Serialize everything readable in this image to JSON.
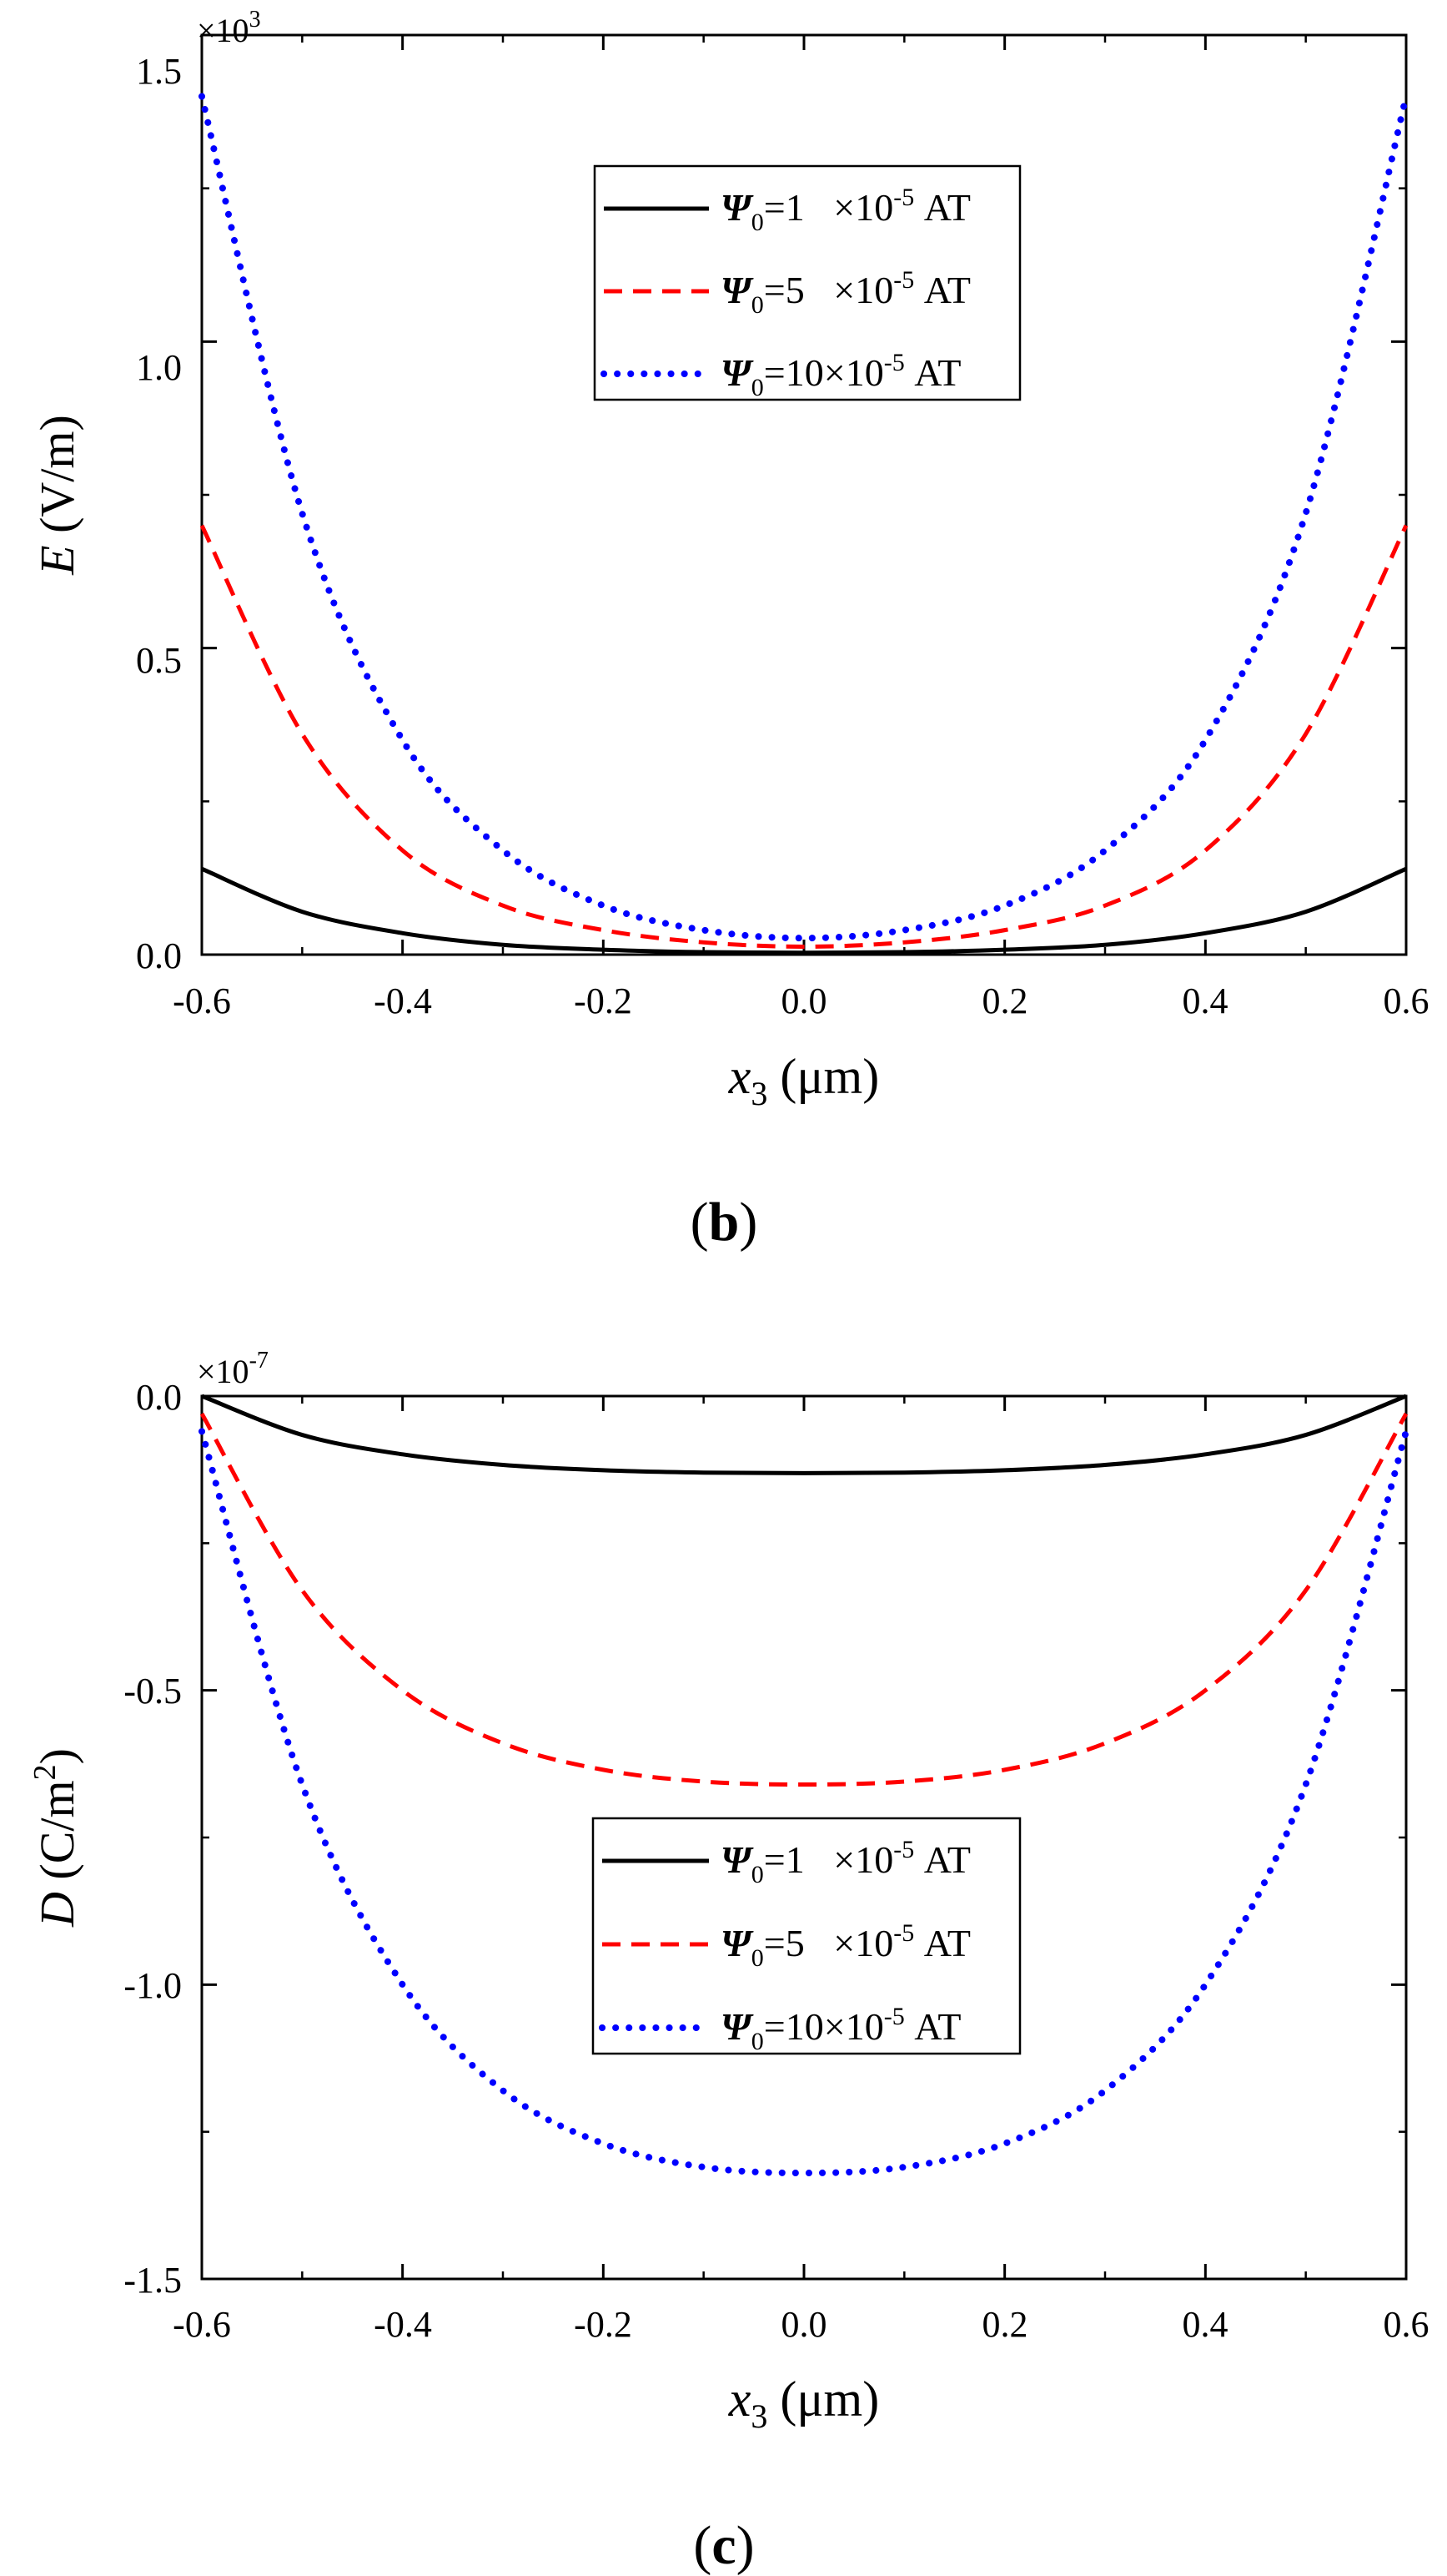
{
  "chart_data": [
    {
      "type": "line",
      "panel_label": "b",
      "ylabel_var": "E",
      "ylabel_unit": " (V/m)",
      "xlabel_var": "x",
      "xlabel_sub": "3",
      "xlabel_unit": " (μm)",
      "xlim": [
        -0.6,
        0.6
      ],
      "ylim": [
        0,
        1.5
      ],
      "xticks": [
        "-0.6",
        "-0.4",
        "-0.2",
        "0.0",
        "0.2",
        "0.4",
        "0.6"
      ],
      "yticks": [
        "0.0",
        "0.5",
        "1.0",
        "1.5"
      ],
      "ytick_values": [
        0,
        0.5,
        1.0,
        1.5
      ],
      "multiplier_base": "×10",
      "multiplier_exp": "3",
      "legend_position": "top-center",
      "series": [
        {
          "name": "Ψ0=1 ×10^-5 AT",
          "psi": "1",
          "gap": "   ",
          "color": "#000000",
          "style": "solid",
          "x": [
            -0.6,
            -0.5,
            -0.4,
            -0.3,
            -0.2,
            -0.1,
            0.0,
            0.1,
            0.2,
            0.3,
            0.4,
            0.5,
            0.6
          ],
          "y": [
            0.14,
            0.07,
            0.035,
            0.016,
            0.008,
            0.004,
            0.003,
            0.004,
            0.008,
            0.016,
            0.035,
            0.07,
            0.14
          ]
        },
        {
          "name": "Ψ0=5 ×10^-5 AT",
          "psi": "5",
          "gap": "   ",
          "color": "#ff0000",
          "style": "dashed",
          "x": [
            -0.6,
            -0.5,
            -0.4,
            -0.3,
            -0.2,
            -0.1,
            0.0,
            0.1,
            0.2,
            0.3,
            0.4,
            0.5,
            0.6
          ],
          "y": [
            0.7,
            0.36,
            0.17,
            0.08,
            0.04,
            0.02,
            0.013,
            0.02,
            0.04,
            0.08,
            0.17,
            0.36,
            0.7
          ]
        },
        {
          "name": "Ψ0=10 ×10^-5 AT",
          "psi": "10",
          "gap": "",
          "color": "#0000ff",
          "style": "dotted",
          "x": [
            -0.6,
            -0.5,
            -0.4,
            -0.3,
            -0.2,
            -0.1,
            0.0,
            0.1,
            0.2,
            0.3,
            0.4,
            0.5,
            0.6
          ],
          "y": [
            1.4,
            0.72,
            0.35,
            0.17,
            0.08,
            0.04,
            0.027,
            0.04,
            0.08,
            0.17,
            0.35,
            0.72,
            1.4
          ]
        }
      ]
    },
    {
      "type": "line",
      "panel_label": "c",
      "ylabel_var": "D",
      "ylabel_unit": " (C/m",
      "ylabel_unit_sup": "2",
      "ylabel_unit_end": ")",
      "xlabel_var": "x",
      "xlabel_sub": "3",
      "xlabel_unit": " (μm)",
      "xlim": [
        -0.6,
        0.6
      ],
      "ylim": [
        -1.5,
        0
      ],
      "xticks": [
        "-0.6",
        "-0.4",
        "-0.2",
        "0.0",
        "0.2",
        "0.4",
        "0.6"
      ],
      "yticks": [
        "0.0",
        "-0.5",
        "-1.0",
        "-1.5"
      ],
      "ytick_values": [
        0,
        -0.5,
        -1.0,
        -1.5
      ],
      "multiplier_base": "×10",
      "multiplier_exp": "-7",
      "legend_position": "center",
      "series": [
        {
          "name": "Ψ0=1 ×10^-5 AT",
          "psi": "1",
          "gap": "   ",
          "color": "#000000",
          "style": "solid",
          "x": [
            -0.6,
            -0.5,
            -0.4,
            -0.3,
            -0.2,
            -0.1,
            0.0,
            0.1,
            0.2,
            0.3,
            0.4,
            0.5,
            0.6
          ],
          "y": [
            0,
            -0.066,
            -0.099,
            -0.117,
            -0.126,
            -0.13,
            -0.131,
            -0.13,
            -0.126,
            -0.117,
            -0.099,
            -0.066,
            0
          ]
        },
        {
          "name": "Ψ0=5 ×10^-5 AT",
          "psi": "5",
          "gap": "   ",
          "color": "#ff0000",
          "style": "dashed",
          "x": [
            -0.6,
            -0.5,
            -0.4,
            -0.3,
            -0.2,
            -0.1,
            0.0,
            0.1,
            0.2,
            0.3,
            0.4,
            0.5,
            0.6
          ],
          "y": [
            -0.03,
            -0.33,
            -0.5,
            -0.59,
            -0.635,
            -0.655,
            -0.66,
            -0.655,
            -0.635,
            -0.59,
            -0.5,
            -0.33,
            -0.03
          ]
        },
        {
          "name": "Ψ0=10 ×10^-5 AT",
          "psi": "10",
          "gap": "",
          "color": "#0000ff",
          "style": "dotted",
          "x": [
            -0.6,
            -0.5,
            -0.4,
            -0.3,
            -0.2,
            -0.1,
            0.0,
            0.1,
            0.2,
            0.3,
            0.4,
            0.5,
            0.6
          ],
          "y": [
            -0.06,
            -0.66,
            -1.0,
            -1.18,
            -1.27,
            -1.31,
            -1.32,
            -1.31,
            -1.27,
            -1.18,
            -1.0,
            -0.66,
            -0.06
          ]
        }
      ]
    }
  ],
  "legend_symbol": "Ψ",
  "legend_sub": "0",
  "legend_eq": "=",
  "legend_times": "×10",
  "legend_exp": "-5",
  "legend_unit": " AT"
}
